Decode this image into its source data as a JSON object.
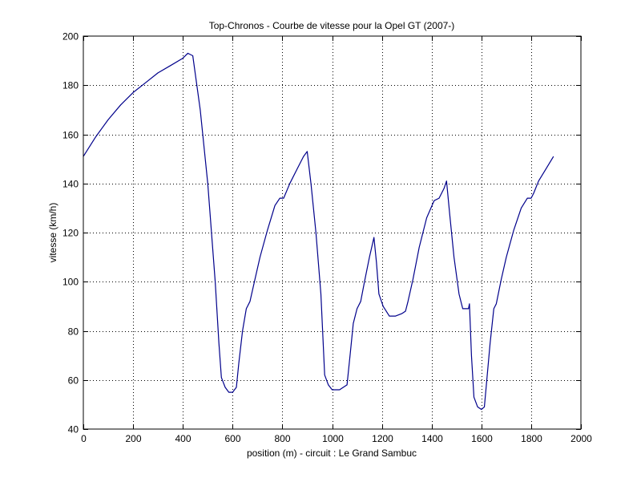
{
  "chart_data": {
    "type": "line",
    "title": "Top-Chronos - Courbe de vitesse pour la Opel GT (2007-)",
    "xlabel": "position (m) - circuit : Le Grand Sambuc",
    "ylabel": "vitesse (km/h)",
    "xlim": [
      0,
      2000
    ],
    "ylim": [
      40,
      200
    ],
    "x_ticks": [
      0,
      200,
      400,
      600,
      800,
      1000,
      1200,
      1400,
      1600,
      1800,
      2000
    ],
    "y_ticks": [
      40,
      60,
      80,
      100,
      120,
      140,
      160,
      180,
      200
    ],
    "grid": true,
    "line_color": "#00008b",
    "series": [
      {
        "x": [
          0,
          50,
          100,
          150,
          200,
          250,
          300,
          350,
          400,
          420,
          440,
          470,
          500,
          530,
          545,
          555,
          570,
          585,
          600,
          615,
          625,
          640,
          655,
          670,
          690,
          710,
          740,
          770,
          790,
          805,
          830,
          860,
          885,
          900,
          915,
          935,
          955,
          970,
          985,
          1000,
          1015,
          1030,
          1045,
          1060,
          1072,
          1085,
          1100,
          1115,
          1130,
          1150,
          1168,
          1178,
          1188,
          1205,
          1230,
          1255,
          1280,
          1295,
          1305,
          1325,
          1350,
          1380,
          1410,
          1430,
          1450,
          1460,
          1473,
          1490,
          1510,
          1525,
          1535,
          1548,
          1552,
          1560,
          1570,
          1585,
          1600,
          1612,
          1620,
          1635,
          1650,
          1660,
          1680,
          1700,
          1730,
          1760,
          1785,
          1800,
          1810,
          1830,
          1860,
          1890
        ],
        "values": [
          151,
          159,
          166,
          172,
          177,
          181,
          185,
          188,
          191,
          193,
          192,
          170,
          140,
          100,
          75,
          61,
          57,
          55,
          55,
          57,
          67,
          80,
          89,
          92,
          101,
          110,
          121,
          131,
          134,
          134,
          140,
          146,
          151,
          153,
          140,
          120,
          95,
          62,
          58,
          56,
          56,
          56,
          57,
          58,
          70,
          83,
          89,
          92,
          100,
          110,
          118,
          108,
          95,
          90,
          86,
          86,
          87,
          88,
          92,
          101,
          114,
          126,
          133,
          134,
          138,
          141,
          127,
          110,
          95,
          89,
          89,
          89,
          91,
          70,
          53,
          49,
          48,
          49,
          58,
          75,
          89,
          91,
          101,
          110,
          121,
          130,
          134,
          134,
          136,
          141,
          146,
          151
        ]
      }
    ]
  }
}
